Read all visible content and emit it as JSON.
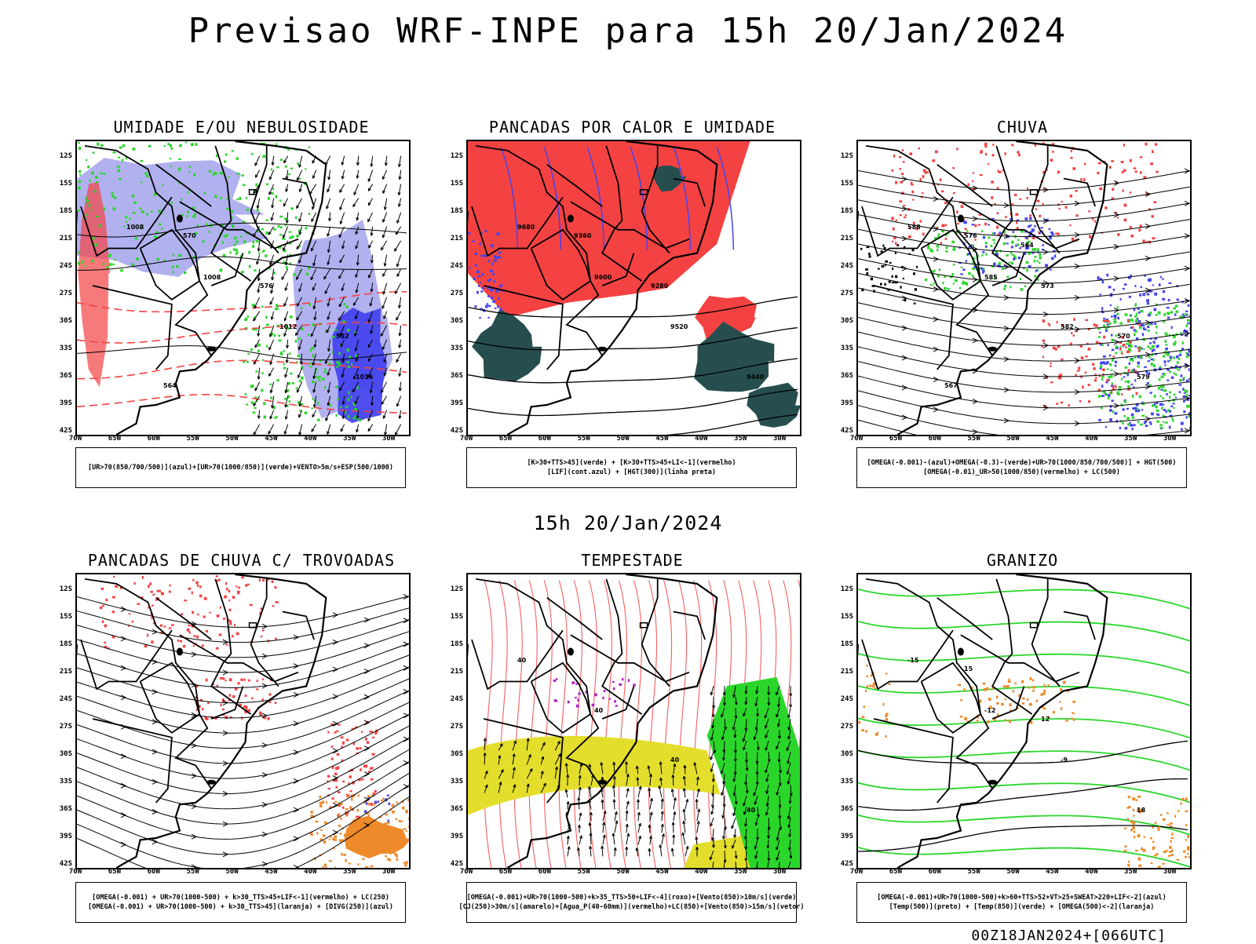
{
  "title": "Previsao WRF-INPE  para 15h 20/Jan/2024",
  "mid_title": "15h 20/Jan/2024",
  "footer": "00Z18JAN2024+[066UTC]",
  "lat_labels": [
    "12S",
    "15S",
    "18S",
    "21S",
    "24S",
    "27S",
    "30S",
    "33S",
    "36S",
    "39S",
    "42S"
  ],
  "lon_labels": [
    "70W",
    "65W",
    "60W",
    "55W",
    "50W",
    "45W",
    "40W",
    "35W",
    "30W"
  ],
  "panels": [
    {
      "id": "umidade",
      "title": "UMIDADE E/OU NEBULOSIDADE",
      "legend": [
        "[UR>70(850/700/500)](azul)+[UR>70(1000/850)](verde)+VENTO>5m/s+ESP(500/1000)"
      ],
      "contour_labels": [
        "1008",
        "1008",
        "1012",
        "1016",
        "570",
        "576",
        "582",
        "564"
      ]
    },
    {
      "id": "pancadas-calor",
      "title": "PANCADAS POR CALOR E UMIDADE",
      "legend": [
        "[K>30+TTS>45](verde) + [K>30+TTS>45+LI<-1](vermelho)",
        "[LIF](cont.azul) + [HGT(300)](linha preta)"
      ],
      "contour_labels": [
        "9680",
        "9600",
        "9520",
        "9440",
        "9360",
        "9280"
      ]
    },
    {
      "id": "chuva",
      "title": "CHUVA",
      "legend": [
        "[OMEGA(-0.001)-(azul)+OMEGA(-0.3)-(verde)+UR>70(1000/850/700/500)] + HGT(500)",
        "[OMEGA(-0.01)_UR>50(1000/850)(vermelho) + LC(500)"
      ],
      "contour_labels": [
        "588",
        "585",
        "582",
        "579",
        "576",
        "573",
        "570",
        "567",
        "564"
      ]
    },
    {
      "id": "trovoadas",
      "title": "PANCADAS DE CHUVA C/ TROVOADAS",
      "legend": [
        "[OMEGA(-0.001) + UR>70(1000-500) + k>30_TTS>45+LIF<-1](vermelho) + LC(250)",
        "[OMEGA(-0.001) + UR>70(1000-500) + k>30_TTS>45](laranja) + [DIVG(250)](azul)"
      ],
      "contour_labels": []
    },
    {
      "id": "tempestade",
      "title": "TEMPESTADE",
      "legend": [
        "[OMEGA(-0.001)+UR>70(1000-500)+k>35_TTS>50+LIF<-4](roxo)+[Vento(850)>10m/s](verde)",
        "[CJ(250)>30m/s](amarelo)+[Agua_P(40-60mm)](vermelho)+LC(850)+[Vento(850)>15m/s](vetor)"
      ],
      "contour_labels": [
        "40",
        "40",
        "40",
        "40"
      ]
    },
    {
      "id": "granizo",
      "title": "GRANIZO",
      "legend": [
        "[OMEGA(-0.001)+UR>70(1000-500)+k>60+TTS>52+VT>25+SWEAT>220+LIF<-2](azul)",
        "[Temp(500)](preto) + [Temp(850)](verde) + [OMEGA(500)<-2](laranja)"
      ],
      "contour_labels": [
        "-15",
        "-12",
        "-9",
        "18",
        "15",
        "12"
      ]
    }
  ],
  "colors": {
    "red": "#f44242",
    "green": "#2bd62b",
    "blue": "#4444ee",
    "lightblue": "#a9a9ee",
    "darkteal": "#274e4e",
    "yellow": "#e3de2c",
    "orange": "#ee8a2a",
    "purple": "#b020c8"
  }
}
